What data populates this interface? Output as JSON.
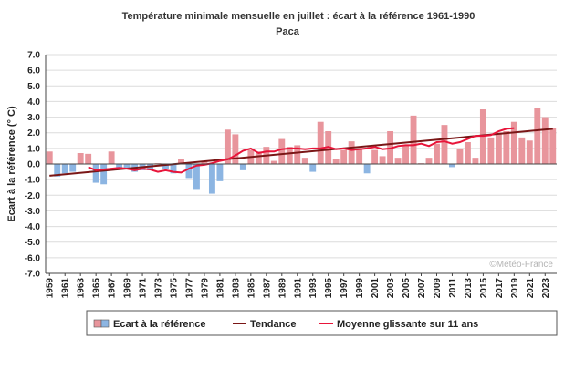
{
  "chart_data": {
    "type": "bar",
    "title": "Température minimale mensuelle en juillet : écart à la référence 1961-1990",
    "subtitle": "Paca",
    "ylabel": "Ecart à la référence (° C)",
    "credit": "©Météo-France",
    "ylim": [
      -7,
      7
    ],
    "yticks": [
      "7.0",
      "6.0",
      "5.0",
      "4.0",
      "3.0",
      "2.0",
      "1.0",
      "0.0",
      "-1.0",
      "-2.0",
      "-3.0",
      "-4.0",
      "-5.0",
      "-6.0",
      "-7.0"
    ],
    "x": [
      1959,
      1960,
      1961,
      1962,
      1963,
      1964,
      1965,
      1966,
      1967,
      1968,
      1969,
      1970,
      1971,
      1972,
      1973,
      1974,
      1975,
      1976,
      1977,
      1978,
      1979,
      1980,
      1981,
      1982,
      1983,
      1984,
      1985,
      1986,
      1987,
      1988,
      1989,
      1990,
      1991,
      1992,
      1993,
      1994,
      1995,
      1996,
      1997,
      1998,
      1999,
      2000,
      2001,
      2002,
      2003,
      2004,
      2005,
      2006,
      2007,
      2008,
      2009,
      2010,
      2011,
      2012,
      2013,
      2014,
      2015,
      2016,
      2017,
      2018,
      2019,
      2020,
      2021,
      2022,
      2023,
      2024
    ],
    "values": [
      0.8,
      -0.8,
      -0.6,
      -0.5,
      0.7,
      0.65,
      -1.2,
      -1.3,
      0.8,
      -0.3,
      -0.3,
      -0.5,
      -0.4,
      -0.4,
      0.05,
      -0.3,
      -0.6,
      0.3,
      -0.9,
      -1.6,
      0.2,
      -1.9,
      -1.1,
      2.2,
      1.9,
      -0.4,
      0.9,
      0.8,
      1.1,
      0.2,
      1.6,
      1.1,
      1.2,
      0.4,
      -0.5,
      2.7,
      2.1,
      0.3,
      0.9,
      1.45,
      1.0,
      -0.6,
      0.9,
      0.5,
      2.1,
      0.4,
      1.2,
      3.1,
      0.05,
      0.4,
      1.3,
      2.5,
      -0.2,
      1.0,
      1.4,
      0.4,
      3.5,
      1.7,
      2.0,
      2.1,
      2.7,
      1.7,
      1.5,
      3.6,
      3.0,
      2.3
    ],
    "xtick_labels": [
      "1959",
      "1961",
      "1963",
      "1965",
      "1967",
      "1969",
      "1971",
      "1973",
      "1975",
      "1977",
      "1979",
      "1981",
      "1983",
      "1985",
      "1987",
      "1989",
      "1991",
      "1993",
      "1995",
      "1997",
      "1999",
      "2001",
      "2003",
      "2005",
      "2007",
      "2009",
      "2011",
      "2013",
      "2015",
      "2017",
      "2019",
      "2021",
      "2023"
    ],
    "series": [
      {
        "name": "Ecart à la référence",
        "type": "bar",
        "color_positive": "#e8959c",
        "color_negative": "#8cb5e2"
      },
      {
        "name": "Tendance",
        "type": "line",
        "color": "#7a1616",
        "values_endpoints": [
          -0.75,
          2.25
        ]
      },
      {
        "name": "Moyenne glissante sur 11 ans",
        "type": "line",
        "color": "#e8153a",
        "x": [
          1964,
          1965,
          1966,
          1967,
          1968,
          1969,
          1970,
          1971,
          1972,
          1973,
          1974,
          1975,
          1976,
          1977,
          1978,
          1979,
          1980,
          1981,
          1982,
          1983,
          1984,
          1985,
          1986,
          1987,
          1988,
          1989,
          1990,
          1991,
          1992,
          1993,
          1994,
          1995,
          1996,
          1997,
          1998,
          1999,
          2000,
          2001,
          2002,
          2003,
          2004,
          2005,
          2006,
          2007,
          2008,
          2009,
          2010,
          2011,
          2012,
          2013,
          2014,
          2015,
          2016,
          2017,
          2018,
          2019
        ],
        "values": [
          -0.2,
          -0.4,
          -0.35,
          -0.3,
          -0.25,
          -0.3,
          -0.4,
          -0.3,
          -0.35,
          -0.5,
          -0.4,
          -0.5,
          -0.55,
          -0.3,
          -0.1,
          -0.05,
          0.05,
          0.2,
          0.3,
          0.55,
          0.85,
          1.0,
          0.7,
          0.8,
          0.8,
          0.95,
          1.0,
          1.0,
          0.95,
          1.0,
          1.0,
          1.1,
          0.95,
          1.0,
          0.9,
          0.95,
          1.0,
          1.1,
          0.95,
          1.0,
          1.15,
          1.2,
          1.2,
          1.3,
          1.15,
          1.4,
          1.45,
          1.3,
          1.4,
          1.6,
          1.8,
          1.8,
          1.85,
          2.1,
          2.25,
          2.3
        ]
      }
    ],
    "legend_position": "bottom",
    "grid": true
  }
}
